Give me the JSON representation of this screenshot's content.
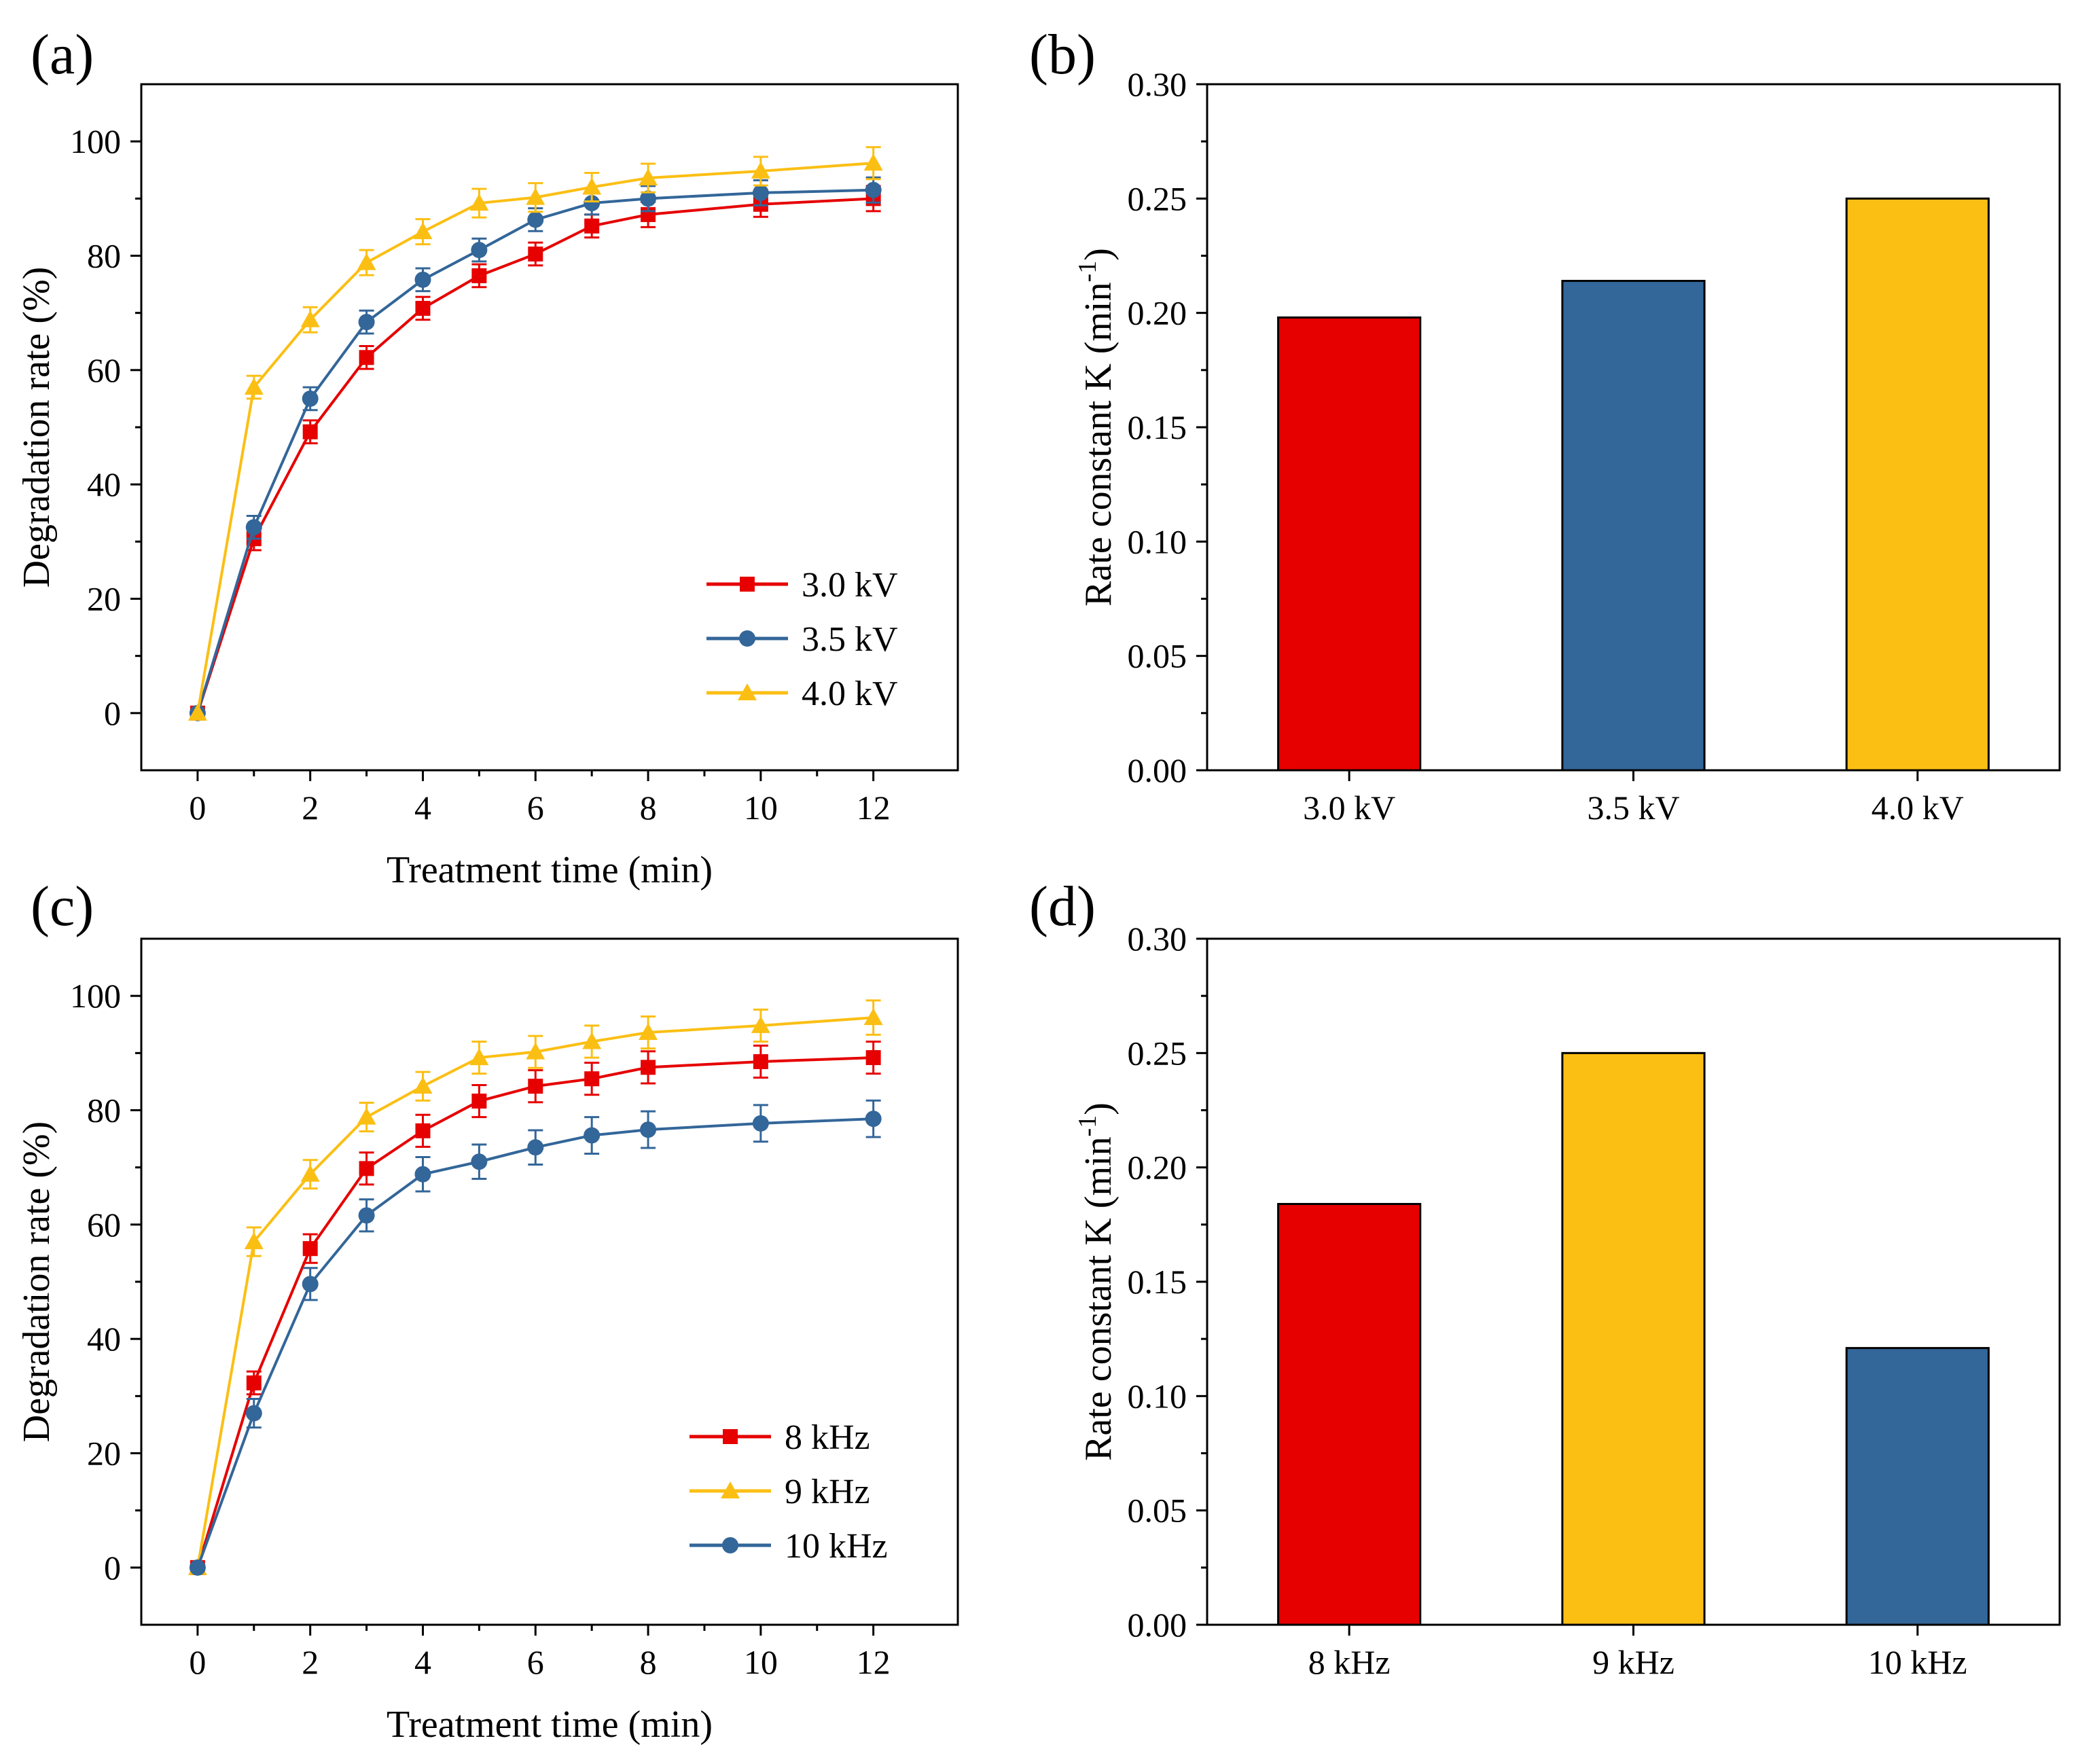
{
  "figure": {
    "colors": {
      "red": "#e60000",
      "blue": "#336699",
      "yellow": "#fbbf14",
      "axis": "#000000"
    }
  },
  "chart_data": [
    {
      "panel": "(a)",
      "type": "line",
      "xlabel": "Treatment time (min)",
      "ylabel": "Degradation rate (%)",
      "xlim": [
        -1,
        13.5
      ],
      "ylim": [
        -10,
        110
      ],
      "xticks": [
        0,
        2,
        4,
        6,
        8,
        10,
        12
      ],
      "yticks": [
        0,
        20,
        40,
        60,
        80,
        100
      ],
      "x": [
        0,
        1,
        2,
        3,
        4,
        5,
        6,
        7,
        8,
        10,
        12
      ],
      "legend_position": "bottom-right",
      "series": [
        {
          "name": "3.0 kV",
          "color": "#e60000",
          "marker": "square",
          "values": [
            0,
            30.5,
            49.2,
            62.2,
            70.8,
            76.5,
            80.3,
            85.2,
            87.2,
            89.0,
            90.0
          ],
          "errors": [
            0.5,
            2.0,
            2.0,
            2.0,
            2.0,
            2.0,
            2.0,
            2.0,
            2.2,
            2.2,
            2.2
          ]
        },
        {
          "name": "3.5 kV",
          "color": "#336699",
          "marker": "circle",
          "values": [
            0,
            32.5,
            55.0,
            68.4,
            75.8,
            81.0,
            86.3,
            89.2,
            90.0,
            91.0,
            91.5
          ],
          "errors": [
            0.5,
            2.0,
            2.0,
            2.0,
            2.0,
            2.0,
            2.0,
            2.0,
            2.2,
            2.2,
            2.2
          ]
        },
        {
          "name": "4.0 kV",
          "color": "#fbbf14",
          "marker": "triangle",
          "values": [
            0,
            57.0,
            68.8,
            78.8,
            84.2,
            89.2,
            90.2,
            92.0,
            93.6,
            94.8,
            96.2
          ],
          "errors": [
            0.5,
            2.0,
            2.2,
            2.2,
            2.2,
            2.5,
            2.5,
            2.5,
            2.5,
            2.5,
            2.8
          ]
        }
      ]
    },
    {
      "panel": "(b)",
      "type": "bar",
      "ylabel_main": "Rate constant K (min",
      "ylabel_sup": "-1",
      "ylabel_end": ")",
      "ylim": [
        0,
        0.3
      ],
      "yticks": [
        "0.00",
        "0.05",
        "0.10",
        "0.15",
        "0.20",
        "0.25",
        "0.30"
      ],
      "categories": [
        "3.0 kV",
        "3.5 kV",
        "4.0 kV"
      ],
      "values": [
        0.198,
        0.214,
        0.25
      ],
      "colors": [
        "#e60000",
        "#336699",
        "#fbbf14"
      ]
    },
    {
      "panel": "(c)",
      "type": "line",
      "xlabel": "Treatment time (min)",
      "ylabel": "Degradation rate (%)",
      "xlim": [
        -1,
        13.5
      ],
      "ylim": [
        -10,
        110
      ],
      "xticks": [
        0,
        2,
        4,
        6,
        8,
        10,
        12
      ],
      "yticks": [
        0,
        20,
        40,
        60,
        80,
        100
      ],
      "x": [
        0,
        1,
        2,
        3,
        4,
        5,
        6,
        7,
        8,
        10,
        12
      ],
      "legend_position": "bottom-right",
      "series": [
        {
          "name": "8 kHz",
          "color": "#e60000",
          "marker": "square",
          "values": [
            0,
            32.3,
            55.8,
            69.8,
            76.4,
            81.6,
            84.2,
            85.5,
            87.5,
            88.5,
            89.2
          ],
          "errors": [
            0.5,
            2.0,
            2.5,
            2.8,
            2.8,
            2.8,
            2.8,
            2.8,
            2.8,
            2.8,
            2.8
          ]
        },
        {
          "name": "9 kHz",
          "color": "#fbbf14",
          "marker": "triangle",
          "values": [
            0,
            57.0,
            68.8,
            78.8,
            84.2,
            89.2,
            90.2,
            92.0,
            93.6,
            94.8,
            96.2
          ],
          "errors": [
            0.5,
            2.5,
            2.5,
            2.5,
            2.5,
            2.8,
            2.8,
            2.8,
            2.8,
            2.8,
            3.0
          ]
        },
        {
          "name": "10 kHz",
          "color": "#336699",
          "marker": "circle",
          "values": [
            0,
            27.0,
            49.6,
            61.6,
            68.8,
            71.0,
            73.5,
            75.6,
            76.6,
            77.7,
            78.5
          ],
          "errors": [
            0.5,
            2.5,
            2.8,
            2.8,
            3.0,
            3.0,
            3.0,
            3.2,
            3.2,
            3.2,
            3.2
          ]
        }
      ]
    },
    {
      "panel": "(d)",
      "type": "bar",
      "ylabel_main": "Rate constant K (min",
      "ylabel_sup": "-1",
      "ylabel_end": ")",
      "ylim": [
        0,
        0.3
      ],
      "yticks": [
        "0.00",
        "0.05",
        "0.10",
        "0.15",
        "0.20",
        "0.25",
        "0.30"
      ],
      "categories": [
        "8 kHz",
        "9 kHz",
        "10 kHz"
      ],
      "values": [
        0.184,
        0.25,
        0.121
      ],
      "colors": [
        "#e60000",
        "#fbbf14",
        "#336699"
      ]
    }
  ]
}
